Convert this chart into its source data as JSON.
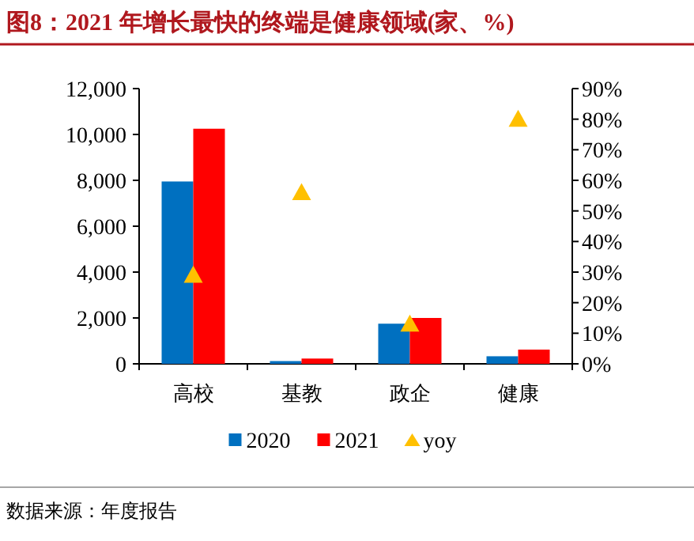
{
  "chart_data": {
    "type": "bar",
    "title": "图8：2021 年增长最快的终端是健康领域(家、%)",
    "categories": [
      "高校",
      "基教",
      "政企",
      "健康"
    ],
    "series": [
      {
        "name": "2020",
        "color": "#0070c0",
        "values": [
          7950,
          120,
          1750,
          330
        ]
      },
      {
        "name": "2021",
        "color": "#ff0000",
        "values": [
          10250,
          230,
          2000,
          620
        ]
      },
      {
        "name": "yoy",
        "type": "scatter",
        "axis": "y2",
        "marker": "triangle",
        "color": "#ffc000",
        "values": [
          29,
          56,
          13,
          80
        ]
      }
    ],
    "ylim": [
      0,
      12000
    ],
    "yticks": [
      {
        "value": 0,
        "label": "0"
      },
      {
        "value": 2000,
        "label": "2,000"
      },
      {
        "value": 4000,
        "label": "4,000"
      },
      {
        "value": 6000,
        "label": "6,000"
      },
      {
        "value": 8000,
        "label": "8,000"
      },
      {
        "value": 10000,
        "label": "10,000"
      },
      {
        "value": 12000,
        "label": "12,000"
      }
    ],
    "y2lim": [
      0,
      90
    ],
    "y2ticks": [
      {
        "value": 0,
        "label": "0%"
      },
      {
        "value": 10,
        "label": "10%"
      },
      {
        "value": 20,
        "label": "20%"
      },
      {
        "value": 30,
        "label": "30%"
      },
      {
        "value": 40,
        "label": "40%"
      },
      {
        "value": 50,
        "label": "50%"
      },
      {
        "value": 60,
        "label": "60%"
      },
      {
        "value": 70,
        "label": "70%"
      },
      {
        "value": 80,
        "label": "80%"
      },
      {
        "value": 90,
        "label": "90%"
      }
    ],
    "grid": false,
    "legend": "bottom",
    "annotations": [
      "数据来源：年度报告"
    ]
  }
}
